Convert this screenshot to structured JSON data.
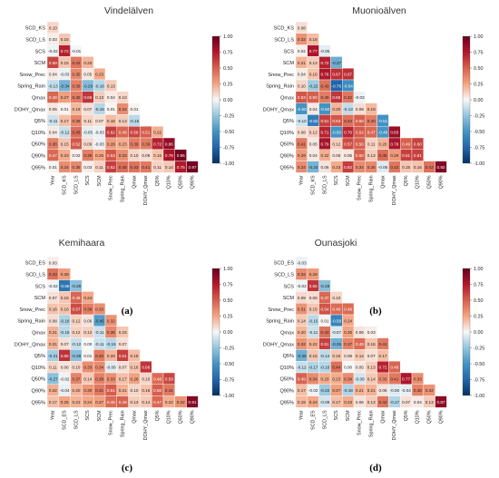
{
  "chart_data": [
    {
      "type": "heatmap",
      "title": "Vindelälven",
      "panel_label": "(a)",
      "rows": [
        "SCD_KS",
        "SCD_LS",
        "SCS",
        "SCM",
        "Snow_Prec",
        "Spring_Rain",
        "Qmax",
        "DOHY_Qmax",
        "Q5%",
        "Q10%",
        "Q50%",
        "Q90%",
        "Q95%"
      ],
      "cols": [
        "Year",
        "SCD_KS",
        "SCD_LS",
        "SCS",
        "SCM",
        "Snow_Prec",
        "Spring_Rain",
        "Qmax",
        "DOHY_Qmax",
        "Q5%",
        "Q10%",
        "Q50%",
        "Q90%"
      ],
      "values": [
        [
          0.1
        ],
        [
          0.03,
          0.15
        ],
        [
          -0.02,
          0.72,
          -0.01
        ],
        [
          0.59,
          0.15,
          0.42,
          0.2
        ],
        [
          0.04,
          -0.03,
          0.35,
          0.05,
          0.23
        ],
        [
          -0.13,
          -0.34,
          0.38,
          -0.29,
          -0.16,
          0.13
        ],
        [
          0.48,
          0.27,
          0.4,
          0.65,
          0.13,
          0.04,
          0.1
        ],
        [
          0.05,
          0.01,
          0.19,
          0.07,
          -0.16,
          0.01,
          0.34,
          0.01
        ],
        [
          -0.11,
          0.17,
          0.36,
          0.11,
          0.07,
          0.18,
          0.13,
          -0.15
        ],
        [
          0.04,
          -0.12,
          0.45,
          -0.05,
          -0.03,
          0.62,
          0.48,
          0.59,
          0.51,
          0.22
        ],
        [
          0.38,
          0.15,
          0.52,
          0.09,
          -0.03,
          0.28,
          0.23,
          0.39,
          0.39,
          0.72,
          0.86
        ],
        [
          0.47,
          0.23,
          0.02,
          0.39,
          0.25,
          0.53,
          0.33,
          0.1,
          0.08,
          0.16,
          0.78,
          0.95
        ],
        [
          0.01,
          0.34,
          0.35,
          0.03,
          0.11,
          0.62,
          0.45,
          0.43,
          0.41,
          0.11,
          0.14,
          0.75,
          0.97
        ]
      ],
      "colorbar": {
        "min": -1.0,
        "max": 1.0,
        "ticks": [
          "1.00",
          "0.75",
          "0.50",
          "0.25",
          "0.00",
          "-0.25",
          "-0.50",
          "-0.75",
          "-1.00"
        ]
      }
    },
    {
      "type": "heatmap",
      "title": "Muonioälven",
      "panel_label": "(b)",
      "rows": [
        "SCD_KS",
        "SCD_LS",
        "SCS",
        "SCM",
        "Snow_Prec",
        "Spring_Rain",
        "Qmax",
        "DOHY_Qmax",
        "Q5%",
        "Q10%",
        "Q50%",
        "Q90%",
        "Q95%"
      ],
      "cols": [
        "Year",
        "SCD_KS",
        "SCD_LS",
        "SCS",
        "SCM",
        "Snow_Prec",
        "Spring_Rain",
        "Qmax",
        "DOHY_Qmax",
        "Q5%",
        "Q10%",
        "Q50%",
        "Q90%"
      ],
      "values": [
        [
          0.08
        ],
        [
          0.32,
          0.18
        ],
        [
          0.02,
          0.77,
          -0.05
        ],
        [
          0.21,
          0.13,
          0.72,
          -0.37
        ],
        [
          0.04,
          0.16,
          0.76,
          0.67,
          0.67
        ],
        [
          0.1,
          -0.22,
          0.43,
          -0.76,
          -0.54
        ],
        [
          0.53,
          0.5,
          0.4,
          0.65,
          0.42,
          -0.03
        ],
        [
          -0.5,
          0.04,
          -0.5,
          0.2,
          -0.13,
          0.08,
          0.19
        ],
        [
          -0.1,
          -0.62,
          0.61,
          0.53,
          0.44,
          0.5,
          0.4,
          -0.51
        ],
        [
          0.08,
          0.12,
          0.71,
          -0.5,
          0.7,
          0.52,
          0.47,
          -0.49,
          0.83
        ],
        [
          0.41,
          0.05,
          0.79,
          0.12,
          0.57,
          0.5,
          0.11,
          0.2,
          0.78,
          0.49,
          0.6
        ],
        [
          0.29,
          0.04,
          0.22,
          0.06,
          0.05,
          0.5,
          0.13,
          0.45,
          0.29,
          0.61,
          0.61
        ],
        [
          0.34,
          -0.34,
          0.06,
          0.23,
          0.62,
          0.34,
          0.35,
          -0.06,
          0.42,
          0.15,
          0.16,
          0.43,
          0.92
        ]
      ],
      "colorbar": {
        "min": -1.0,
        "max": 1.0,
        "ticks": [
          "1.00",
          "0.75",
          "0.50",
          "0.25",
          "0.00",
          "-0.25",
          "-0.50",
          "-0.75",
          "-1.00"
        ]
      }
    },
    {
      "type": "heatmap",
      "title": "Kemihaara",
      "panel_label": "(c)",
      "rows": [
        "SCD_ES",
        "SCD_LS",
        "SCS",
        "SCM",
        "Snow_Prec",
        "Spring_Rain",
        "Qmax",
        "DOHY_Qmax",
        "Q5%",
        "Q10%",
        "Q50%",
        "Q90%",
        "Q95%"
      ],
      "cols": [
        "Year",
        "SCD_ES",
        "SCD_LS",
        "SCS",
        "SCM",
        "Snow_Prec",
        "Spring_Rain",
        "Qmax",
        "DOHY_Qmax",
        "Q5%",
        "Q10%",
        "Q50%",
        "Q90%"
      ],
      "values": [
        [
          0.03
        ],
        [
          0.43,
          0.28
        ],
        [
          -0.02,
          -0.66,
          -0.28
        ],
        [
          0.07,
          0.15,
          0.48,
          0.24
        ],
        [
          0.16,
          0.16,
          0.57,
          0.39,
          0.33
        ],
        [
          0.08,
          -0.18,
          0.12,
          0.06,
          -0.45,
          0.32
        ],
        [
          0.21,
          -0.15,
          0.12,
          0.12,
          -0.11,
          0.36,
          0.15
        ],
        [
          0.21,
          0.07,
          -0.12,
          0.0,
          -0.11,
          -0.16,
          0.07
        ],
        [
          -0.21,
          0.66,
          -0.28,
          0.01,
          0.4,
          0.2,
          0.61,
          0.18
        ],
        [
          0.11,
          0.06,
          0.1,
          0.33,
          0.34,
          -0.06,
          0.07,
          0.16,
          0.66
        ],
        [
          -0.27,
          -0.02,
          0.37,
          0.14,
          0.38,
          0.33,
          0.17,
          0.26,
          0.1,
          0.46,
          0.59
        ],
        [
          0.22,
          -0.04,
          0.2,
          0.3,
          0.41,
          0.51,
          0.21,
          0.1,
          0.16,
          0.5,
          0.41
        ],
        [
          0.17,
          0.25,
          0.21,
          0.24,
          0.27,
          0.46,
          0.49,
          0.13,
          0.14,
          0.47,
          0.22,
          0.32,
          0.91
        ]
      ],
      "colorbar": {
        "min": -1.0,
        "max": 1.0,
        "ticks": [
          "1.00",
          "0.75",
          "0.50",
          "0.25",
          "0.00",
          "-0.25",
          "-0.50",
          "-0.75",
          "-1.00"
        ]
      }
    },
    {
      "type": "heatmap",
      "title": "Ounasjoki",
      "panel_label": "(d)",
      "rows": [
        "SCD_ES",
        "SCD_LS",
        "SCS",
        "SCM",
        "Snow_Prec",
        "Spring_Rain",
        "Qmax",
        "DOHY_Qmax",
        "Q5%",
        "Q10%",
        "Q50%",
        "Q90%",
        "Q95%"
      ],
      "cols": [
        "Year",
        "SCD_ES",
        "SCD_LS",
        "SCS",
        "SCM",
        "Snow_Prec",
        "Spring_Rain",
        "Qmax",
        "DOHY_Qmax",
        "Q5%",
        "Q10%",
        "Q50%",
        "Q90%"
      ],
      "values": [
        [
          -0.03
        ],
        [
          0.34,
          0.28
        ],
        [
          -0.02,
          0.65,
          -0.28
        ],
        [
          0.09,
          0.08,
          0.47,
          0.1
        ],
        [
          0.31,
          0.15,
          0.54,
          0.46,
          0.46
        ],
        [
          0.14,
          -0.15,
          0.01,
          -0.58,
          0.24
        ],
        [
          0.2,
          -0.11,
          0.43,
          -0.07,
          0.26,
          0.06,
          0.03
        ],
        [
          0.32,
          0.22,
          0.61,
          -0.35,
          0.37,
          0.46,
          0.16,
          0.41
        ],
        [
          -0.36,
          0.15,
          -0.14,
          0.15,
          0.08,
          0.14,
          0.07,
          0.17
        ],
        [
          -0.12,
          -0.17,
          -0.16,
          0.44,
          0.0,
          0.05,
          0.13,
          0.72,
          0.48
        ],
        [
          0.49,
          0.34,
          0.23,
          0.23,
          0.34,
          -0.09,
          0.14,
          0.33,
          0.41,
          0.77,
          0.33
        ],
        [
          0.17,
          -0.02,
          -0.22,
          0.27,
          -0.18,
          0.21,
          0.21,
          0.06,
          -0.06,
          -0.04,
          0.38,
          0.32
        ],
        [
          0.19,
          0.24,
          -0.09,
          0.17,
          0.23,
          0.06,
          0.13,
          0.42,
          -0.17,
          0.07,
          0.04,
          0.13,
          0.87
        ]
      ],
      "colorbar": {
        "min": -1.0,
        "max": 1.0,
        "ticks": [
          "1.00",
          "0.75",
          "0.50",
          "0.25",
          "0.00",
          "-0.25",
          "-0.50",
          "-0.75",
          "-1.00"
        ]
      }
    }
  ]
}
